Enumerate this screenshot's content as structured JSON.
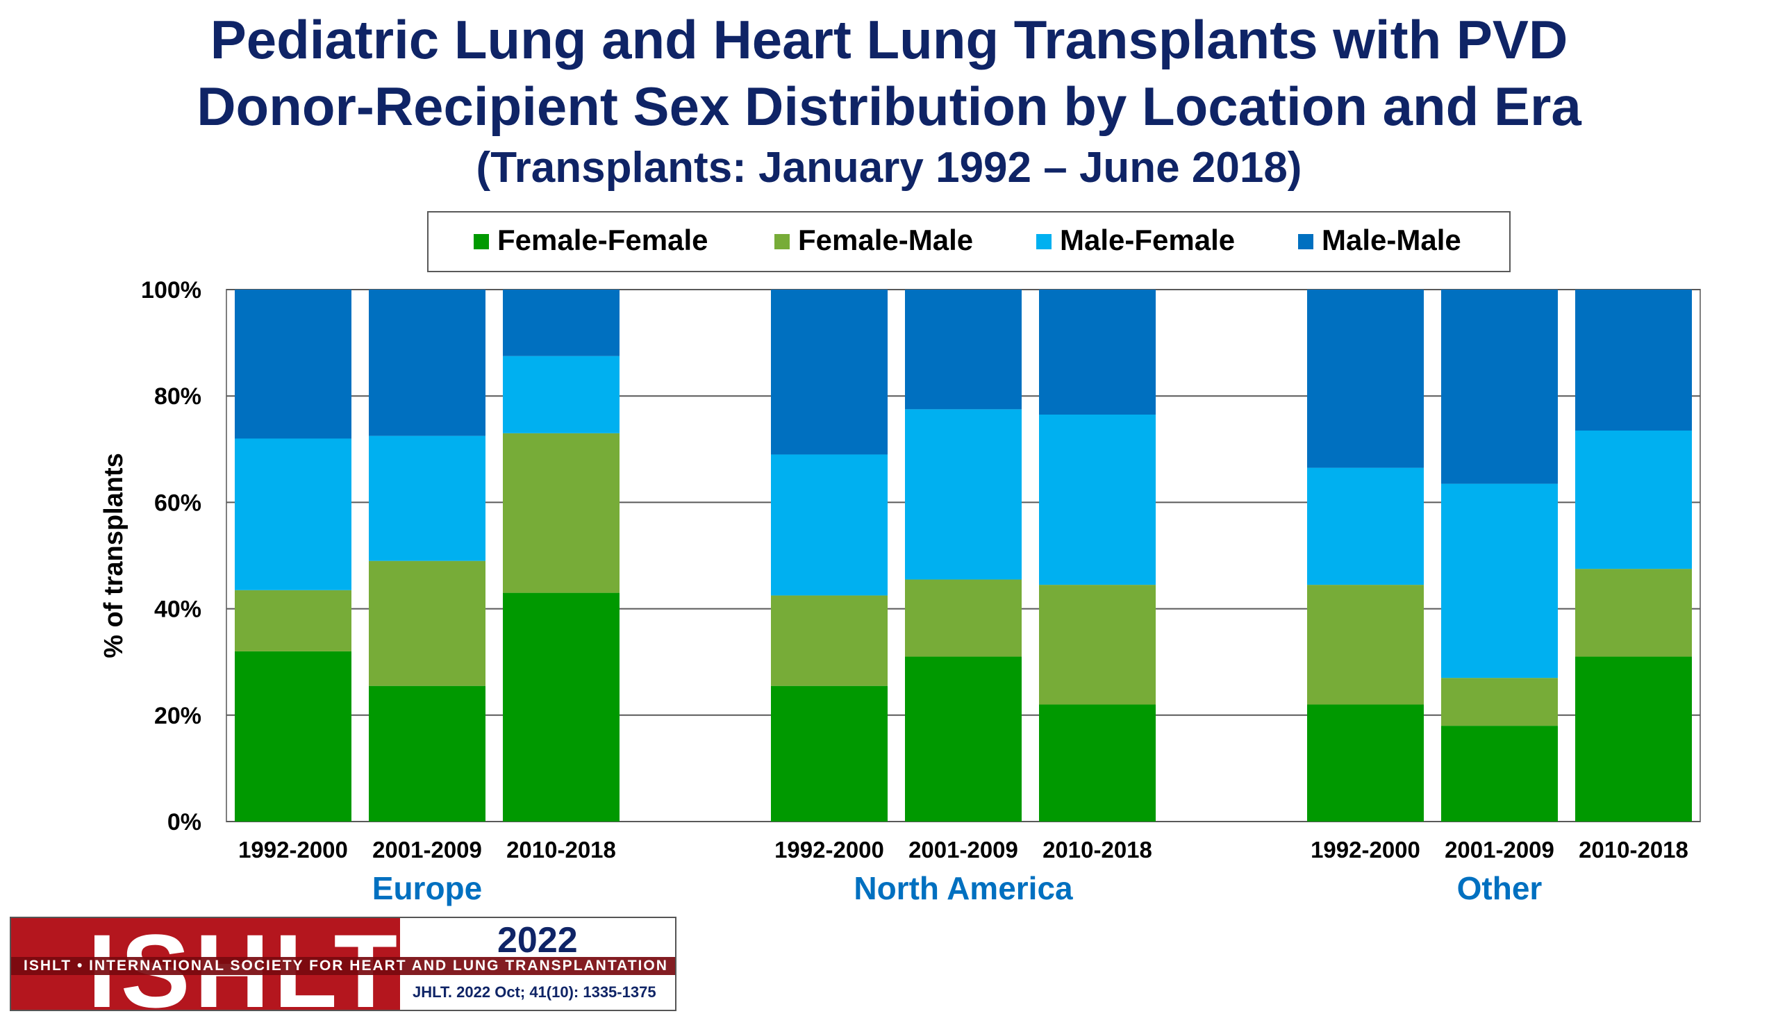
{
  "titles": {
    "line1": "Pediatric Lung and Heart Lung Transplants with PVD",
    "line2": "Donor-Recipient Sex Distribution by Location and Era",
    "line3": "(Transplants: January 1992 – June 2018)"
  },
  "chart_data": {
    "type": "bar",
    "stacked": true,
    "ylabel": "% of transplants",
    "ylim": [
      0,
      100
    ],
    "yticks": [
      "0%",
      "20%",
      "40%",
      "60%",
      "80%",
      "100%"
    ],
    "grid": true,
    "legend_position": "top",
    "groups": [
      "Europe",
      "North America",
      "Other"
    ],
    "categories": [
      "1992-2000",
      "2001-2009",
      "2010-2018",
      "1992-2000",
      "2001-2009",
      "2010-2018",
      "1992-2000",
      "2001-2009",
      "2010-2018"
    ],
    "series": [
      {
        "name": "Female-Female",
        "color": "#009900",
        "values": [
          32,
          25.5,
          43,
          25.5,
          31,
          22,
          22,
          18,
          31
        ]
      },
      {
        "name": "Female-Male",
        "color": "#77ac38",
        "values": [
          11.5,
          23.5,
          30,
          17,
          14.5,
          22.5,
          22.5,
          9,
          16.5
        ]
      },
      {
        "name": "Male-Female",
        "color": "#00b0f0",
        "values": [
          28.5,
          23.5,
          14.5,
          26.5,
          32,
          32,
          22,
          36.5,
          26
        ]
      },
      {
        "name": "Male-Male",
        "color": "#0070c0",
        "values": [
          28,
          27.5,
          12.5,
          31,
          22.5,
          23.5,
          33.5,
          36.5,
          26.5
        ]
      }
    ]
  },
  "logo": {
    "text": "ISHLT",
    "strip": "ISHLT • INTERNATIONAL SOCIETY FOR HEART AND LUNG TRANSPLANTATION",
    "year": "2022",
    "citation": "JHLT. 2022 Oct; 41(10): 1335-1375"
  }
}
